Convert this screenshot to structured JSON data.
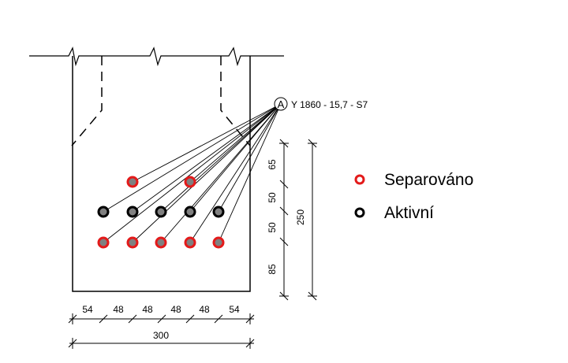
{
  "tendon_label": {
    "marker": "A",
    "text": "Y 1860 - 15,7 - S7"
  },
  "legend": {
    "items": [
      {
        "label": "Separováno",
        "color": "#e31a1a"
      },
      {
        "label": "Aktivní",
        "color": "#000000"
      }
    ]
  },
  "dimensions": {
    "vertical": [
      "65",
      "50",
      "50",
      "85"
    ],
    "vertical_total": "250",
    "horizontal": [
      "54",
      "48",
      "48",
      "48",
      "48",
      "54"
    ],
    "horizontal_total": "300"
  },
  "strands": {
    "top_row": {
      "state": "Separováno",
      "count": 2
    },
    "middle_row": {
      "state": "Aktivní",
      "count": 5
    },
    "bottom_row": {
      "state": "Separováno",
      "count": 5
    }
  }
}
